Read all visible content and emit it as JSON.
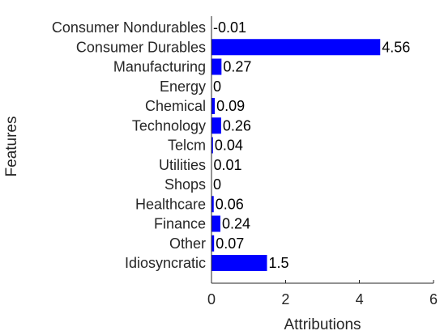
{
  "chart_data": {
    "type": "bar",
    "orientation": "horizontal",
    "categories": [
      "Consumer Nondurables",
      "Consumer Durables",
      "Manufacturing",
      "Energy",
      "Chemical",
      "Technology",
      "Telcm",
      "Utilities",
      "Shops",
      "Healthcare",
      "Finance",
      "Other",
      "Idiosyncratic"
    ],
    "values": [
      -0.01,
      4.56,
      0.27,
      0,
      0.09,
      0.26,
      0.04,
      0.01,
      0,
      0.06,
      0.24,
      0.07,
      1.5
    ],
    "value_labels": [
      "-0.01",
      "4.56",
      "0.27",
      "0",
      "0.09",
      "0.26",
      "0.04",
      "0.01",
      "0",
      "0.06",
      "0.24",
      "0.07",
      "1.5"
    ],
    "xlabel": "Attributions",
    "ylabel": "Features",
    "xlim": [
      0,
      6
    ],
    "xticks": [
      0,
      2,
      4,
      6
    ],
    "xtick_labels": [
      "0",
      "2",
      "4",
      "6"
    ],
    "bar_color": "#0000ff",
    "grid": false,
    "legend": "none"
  }
}
